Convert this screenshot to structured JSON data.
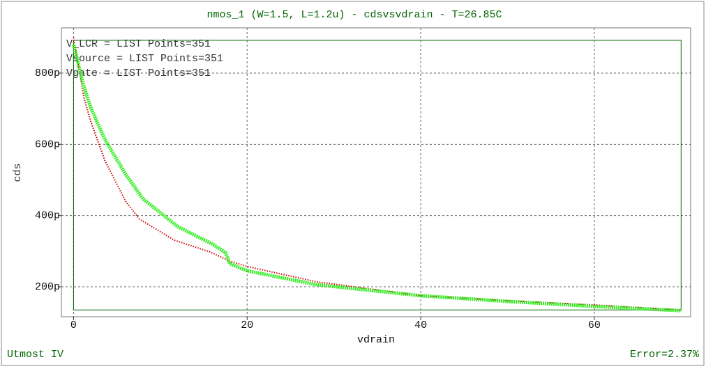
{
  "chart_data": {
    "type": "line",
    "title": "nmos_1 (W=1.5, L=1.2u) - cdsvsvdrain - T=26.85C",
    "x_label": "vdrain",
    "y_label": "cds",
    "annotations": [
      "V_LCR = LIST Points=351",
      "Vsource = LIST Points=351",
      "Vgate = LIST Points=351"
    ],
    "footer_left": "Utmost IV",
    "footer_right": "Error=2.37%",
    "xlim": [
      -1.4,
      71.1
    ],
    "xticks": [
      0,
      20,
      40,
      60
    ],
    "ylim": [
      116,
      927
    ],
    "yticks": [
      {
        "value": 200,
        "label": "200p"
      },
      {
        "value": 400,
        "label": "400p"
      },
      {
        "value": 600,
        "label": "600p"
      },
      {
        "value": 800,
        "label": "800p"
      }
    ],
    "grid": true,
    "window": {
      "xlim": [
        0,
        70
      ],
      "ylim": [
        135,
        892
      ],
      "color": "#006400"
    },
    "series": [
      {
        "color": "#d00000",
        "style": "dotted",
        "x": [
          0,
          1.2,
          2,
          3.6,
          6,
          7.6,
          11.6,
          15.7,
          18,
          20,
          28,
          40,
          50,
          60,
          70
        ],
        "values": [
          900,
          731,
          663,
          555,
          440,
          390,
          331,
          298,
          272,
          257,
          214,
          175,
          161,
          149,
          135
        ]
      },
      {
        "color": "#33ee22",
        "style": "markers",
        "x": [
          0,
          1.2,
          2,
          3.6,
          6,
          8,
          12,
          16,
          17.5,
          18,
          20,
          28,
          40,
          50,
          60,
          70
        ],
        "values": [
          880,
          761,
          702,
          614,
          516,
          447,
          369,
          320,
          296,
          265,
          245,
          206,
          175,
          159,
          145,
          133
        ]
      }
    ]
  }
}
